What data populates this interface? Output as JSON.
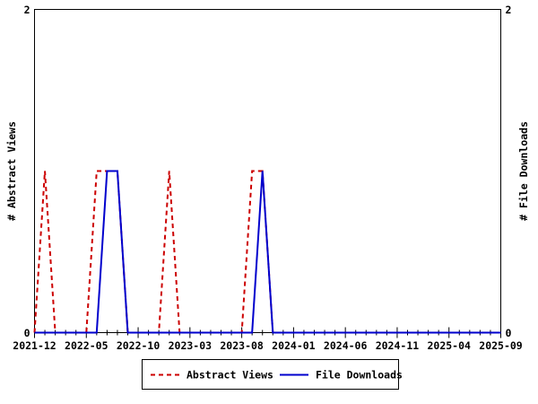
{
  "chart_data": {
    "type": "line",
    "title": "",
    "xlabel": "",
    "ylabel_left": "# Abstract Views",
    "ylabel_right": "# File Downloads",
    "ylim": [
      0,
      2
    ],
    "ytick_labels": [
      "0",
      "2"
    ],
    "grid": false,
    "legend_position": "bottom-center",
    "axis_color": "#000000",
    "background_color": "#ffffff",
    "x": [
      "2021-12",
      "2022-01",
      "2022-02",
      "2022-03",
      "2022-04",
      "2022-05",
      "2022-06",
      "2022-07",
      "2022-08",
      "2022-09",
      "2022-10",
      "2022-11",
      "2022-12",
      "2023-01",
      "2023-02",
      "2023-03",
      "2023-04",
      "2023-05",
      "2023-06",
      "2023-07",
      "2023-08",
      "2023-09",
      "2023-10",
      "2023-11",
      "2023-12",
      "2024-01",
      "2024-02",
      "2024-03",
      "2024-04",
      "2024-05",
      "2024-06",
      "2024-07",
      "2024-08",
      "2024-09",
      "2024-10",
      "2024-11",
      "2024-12",
      "2025-01",
      "2025-02",
      "2025-03",
      "2025-04",
      "2025-05",
      "2025-06",
      "2025-07",
      "2025-08",
      "2025-09"
    ],
    "x_major_tick_labels": [
      "2021-12",
      "2022-05",
      "2022-10",
      "2023-03",
      "2023-08",
      "2024-01",
      "2024-06",
      "2024-11",
      "2025-04",
      "2025-09"
    ],
    "series": [
      {
        "name": "Abstract Views",
        "color": "#cc0000",
        "line_style": "dashed",
        "axis": "left",
        "values": [
          0,
          1,
          0,
          0,
          0,
          0,
          1,
          1,
          1,
          0,
          0,
          0,
          0,
          1,
          0,
          0,
          0,
          0,
          0,
          0,
          0,
          1,
          1,
          0,
          0,
          0,
          0,
          0,
          0,
          0,
          0,
          0,
          0,
          0,
          0,
          0,
          0,
          0,
          0,
          0,
          0,
          0,
          0,
          0,
          0,
          0
        ]
      },
      {
        "name": "File Downloads",
        "color": "#0000cd",
        "line_style": "solid",
        "axis": "right",
        "values": [
          0,
          0,
          0,
          0,
          0,
          0,
          0,
          1,
          1,
          0,
          0,
          0,
          0,
          0,
          0,
          0,
          0,
          0,
          0,
          0,
          0,
          0,
          1,
          0,
          0,
          0,
          0,
          0,
          0,
          0,
          0,
          0,
          0,
          0,
          0,
          0,
          0,
          0,
          0,
          0,
          0,
          0,
          0,
          0,
          0,
          0
        ]
      }
    ]
  }
}
